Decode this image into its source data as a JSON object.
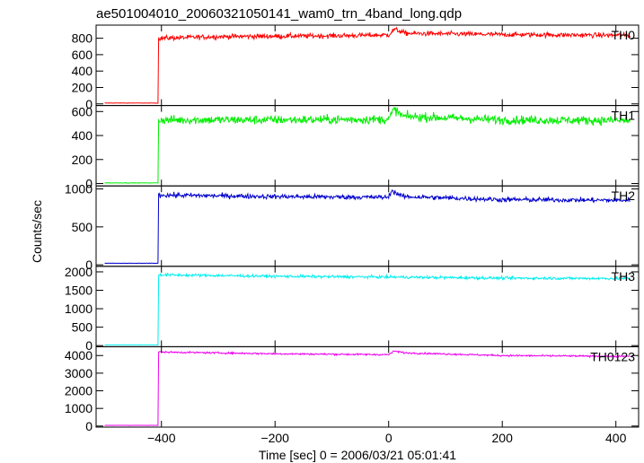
{
  "chart_data": {
    "type": "line",
    "title": "ae501004010_20060321050141_wam0_trn_4band_long.qdp",
    "xlabel": "Time [sec] 0 = 2006/03/21 05:01:41",
    "ylabel": "Counts/sec",
    "xlim": [
      -515,
      440
    ],
    "x_ticks": [
      -400,
      -200,
      0,
      200,
      400
    ],
    "x_tick_labels": [
      "−400",
      "−200",
      "0",
      "200",
      "400"
    ],
    "grid": false,
    "step_time": -405,
    "start_time": -500,
    "end_time": 425,
    "panels": [
      {
        "name": "TH0",
        "color": "#ff0000",
        "ylim": [
          -20,
          960
        ],
        "yticks": [
          0,
          200,
          400,
          600,
          800
        ],
        "pre_level": 10,
        "segments": [
          [
            -405,
            800
          ],
          [
            -300,
            820
          ],
          [
            -100,
            830
          ],
          [
            0,
            840
          ],
          [
            10,
            910
          ],
          [
            30,
            860
          ],
          [
            200,
            845
          ],
          [
            425,
            835
          ]
        ],
        "noise": 28
      },
      {
        "name": "TH1",
        "color": "#00ee00",
        "ylim": [
          -20,
          650
        ],
        "yticks": [
          0,
          200,
          400,
          600
        ],
        "pre_level": 5,
        "segments": [
          [
            -405,
            530
          ],
          [
            -200,
            530
          ],
          [
            0,
            535
          ],
          [
            10,
            620
          ],
          [
            25,
            560
          ],
          [
            200,
            530
          ],
          [
            425,
            525
          ]
        ],
        "noise": 35
      },
      {
        "name": "TH2",
        "color": "#0000cc",
        "ylim": [
          -20,
          1040
        ],
        "yticks": [
          0,
          500,
          1000
        ],
        "pre_level": 20,
        "segments": [
          [
            -405,
            920
          ],
          [
            -200,
            900
          ],
          [
            0,
            890
          ],
          [
            5,
            980
          ],
          [
            25,
            900
          ],
          [
            200,
            860
          ],
          [
            425,
            850
          ]
        ],
        "noise": 30
      },
      {
        "name": "TH3",
        "color": "#00eeee",
        "ylim": [
          -30,
          2150
        ],
        "yticks": [
          0,
          500,
          1000,
          1500,
          2000
        ],
        "pre_level": 20,
        "segments": [
          [
            -405,
            1920
          ],
          [
            -200,
            1880
          ],
          [
            0,
            1860
          ],
          [
            200,
            1830
          ],
          [
            425,
            1820
          ]
        ],
        "noise": 35
      },
      {
        "name": "TH0123",
        "color": "#ee00ee",
        "ylim": [
          -60,
          4500
        ],
        "yticks": [
          0,
          1000,
          2000,
          3000,
          4000
        ],
        "pre_level": 40,
        "segments": [
          [
            -405,
            4200
          ],
          [
            -200,
            4100
          ],
          [
            0,
            4050
          ],
          [
            10,
            4250
          ],
          [
            30,
            4150
          ],
          [
            200,
            4000
          ],
          [
            425,
            3950
          ]
        ],
        "noise": 45
      }
    ]
  }
}
